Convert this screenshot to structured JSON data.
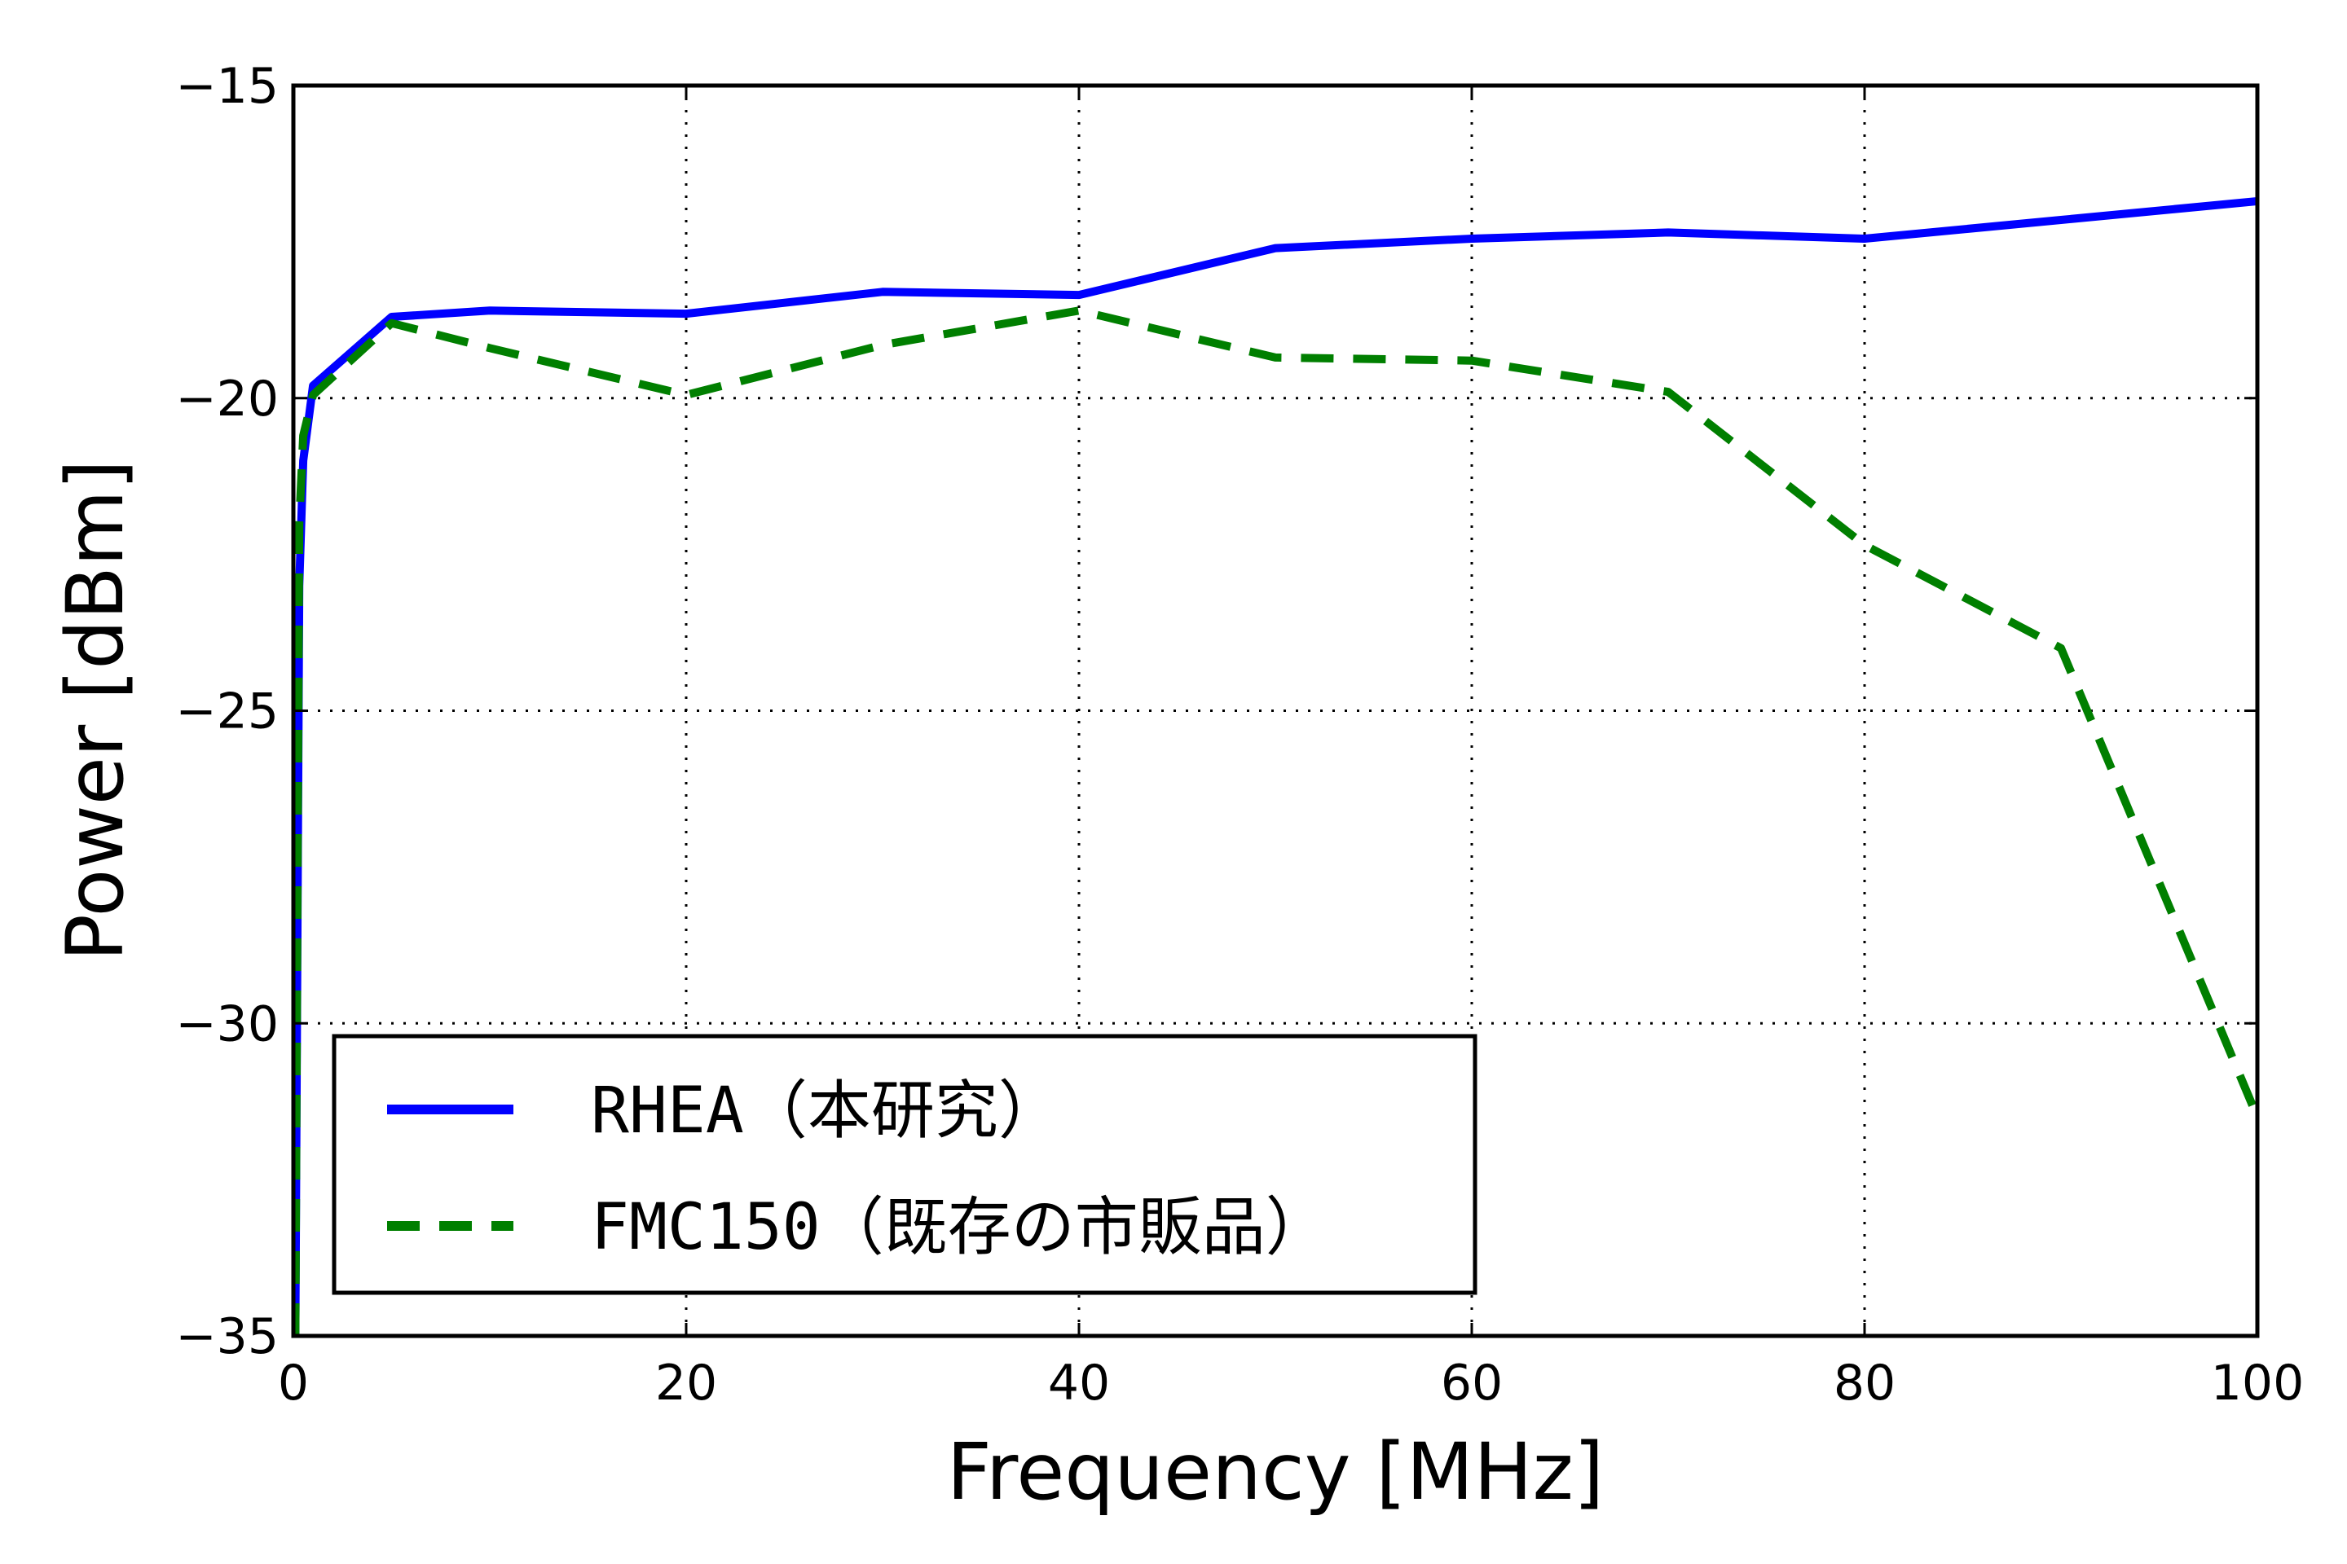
{
  "chart_data": {
    "type": "line",
    "xlabel": "Frequency [MHz]",
    "ylabel": "Power [dBm]",
    "xlim": [
      0,
      100
    ],
    "ylim": [
      -35,
      -15
    ],
    "xticks": [
      0,
      20,
      40,
      60,
      80,
      100
    ],
    "xtick_labels": [
      "0",
      "20",
      "40",
      "60",
      "80",
      "100"
    ],
    "yticks": [
      -35,
      -30,
      -25,
      -20,
      -15
    ],
    "ytick_labels": [
      "−35",
      "−30",
      "−25",
      "−20",
      "−15"
    ],
    "grid": true,
    "legend_position": "lower-left",
    "series": [
      {
        "name": "RHEA（本研究）",
        "color": "#0000ff",
        "style": "solid",
        "x": [
          0.1,
          0.3,
          0.5,
          1,
          5,
          10,
          20,
          30,
          40,
          50,
          60,
          70,
          80,
          90,
          100
        ],
        "y": [
          -35,
          -23,
          -21,
          -19.8,
          -18.7,
          -18.6,
          -18.65,
          -18.3,
          -18.35,
          -17.6,
          -17.45,
          -17.35,
          -17.45,
          -17.15,
          -16.85
        ]
      },
      {
        "name": "FMC150（既存の市販品）",
        "color": "#007f00",
        "style": "dashed",
        "x": [
          0.1,
          0.3,
          0.5,
          1,
          5,
          10,
          20,
          30,
          40,
          50,
          60,
          70,
          80,
          90,
          100
        ],
        "y": [
          -35,
          -22,
          -20.6,
          -19.95,
          -18.8,
          -19.2,
          -19.95,
          -19.15,
          -18.6,
          -19.35,
          -19.4,
          -19.9,
          -22.35,
          -24,
          -31.5
        ]
      }
    ]
  }
}
